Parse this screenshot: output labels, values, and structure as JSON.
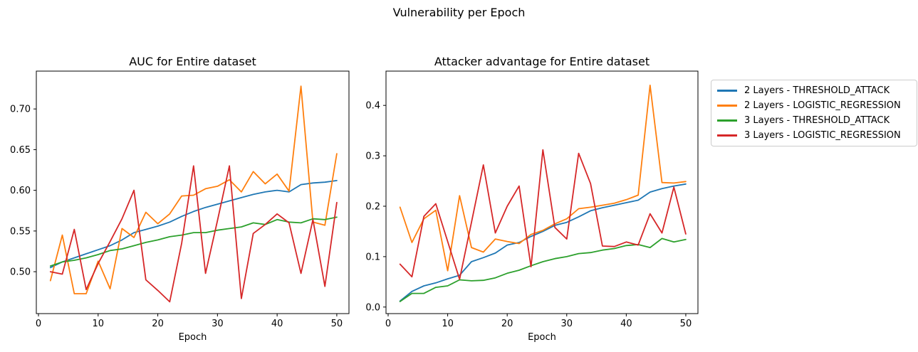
{
  "figure": {
    "title": "Vulnerability per Epoch",
    "background": "#ffffff"
  },
  "legend": {
    "position": "top-right-outside",
    "border_color": "#cccccc",
    "items": [
      {
        "label": "2 Layers - THRESHOLD_ATTACK",
        "color": "#1f77b4"
      },
      {
        "label": "2 Layers - LOGISTIC_REGRESSION",
        "color": "#ff7f0e"
      },
      {
        "label": "3 Layers - THRESHOLD_ATTACK",
        "color": "#2ca02c"
      },
      {
        "label": "3 Layers - LOGISTIC_REGRESSION",
        "color": "#d62728"
      }
    ]
  },
  "chart_data": [
    {
      "type": "line",
      "title": "AUC for Entire dataset",
      "xlabel": "Epoch",
      "ylabel": "",
      "grid": false,
      "x": [
        2,
        4,
        6,
        8,
        10,
        12,
        14,
        16,
        18,
        20,
        22,
        24,
        26,
        28,
        30,
        32,
        34,
        36,
        38,
        40,
        42,
        44,
        46,
        48,
        50
      ],
      "xticks": [
        0,
        10,
        20,
        30,
        40,
        50
      ],
      "xtick_labels": [
        "0",
        "10",
        "20",
        "30",
        "40",
        "50"
      ],
      "yticks": [
        0.5,
        0.55,
        0.6,
        0.65,
        0.7
      ],
      "ytick_labels": [
        "0.50",
        "0.55",
        "0.60",
        "0.65",
        "0.70"
      ],
      "xlim": [
        -0.36,
        52.04
      ],
      "ylim": [
        0.4485,
        0.7465
      ],
      "series": [
        {
          "name": "2 Layers - THRESHOLD_ATTACK",
          "color": "#1f77b4",
          "values": [
            0.505,
            0.512,
            0.517,
            0.522,
            0.527,
            0.532,
            0.539,
            0.548,
            0.552,
            0.556,
            0.561,
            0.568,
            0.574,
            0.579,
            0.583,
            0.587,
            0.591,
            0.595,
            0.598,
            0.6,
            0.598,
            0.607,
            0.609,
            0.61,
            0.612
          ]
        },
        {
          "name": "2 Layers - LOGISTIC_REGRESSION",
          "color": "#ff7f0e",
          "values": [
            0.489,
            0.545,
            0.473,
            0.473,
            0.513,
            0.479,
            0.553,
            0.542,
            0.573,
            0.559,
            0.571,
            0.593,
            0.594,
            0.602,
            0.605,
            0.613,
            0.598,
            0.623,
            0.608,
            0.62,
            0.599,
            0.728,
            0.561,
            0.557,
            0.645
          ]
        },
        {
          "name": "3 Layers - THRESHOLD_ATTACK",
          "color": "#2ca02c",
          "values": [
            0.507,
            0.512,
            0.514,
            0.517,
            0.521,
            0.526,
            0.528,
            0.532,
            0.536,
            0.539,
            0.543,
            0.545,
            0.548,
            0.548,
            0.551,
            0.553,
            0.555,
            0.56,
            0.558,
            0.564,
            0.561,
            0.56,
            0.565,
            0.564,
            0.567
          ]
        },
        {
          "name": "3 Layers - LOGISTIC_REGRESSION",
          "color": "#d62728",
          "values": [
            0.5,
            0.497,
            0.552,
            0.478,
            0.51,
            0.537,
            0.565,
            0.6,
            0.49,
            0.477,
            0.463,
            0.535,
            0.63,
            0.498,
            0.563,
            0.63,
            0.467,
            0.547,
            0.558,
            0.571,
            0.56,
            0.498,
            0.564,
            0.482,
            0.585
          ]
        }
      ]
    },
    {
      "type": "line",
      "title": "Attacker advantage for Entire dataset",
      "xlabel": "Epoch",
      "ylabel": "",
      "grid": false,
      "x": [
        2,
        4,
        6,
        8,
        10,
        12,
        14,
        16,
        18,
        20,
        22,
        24,
        26,
        28,
        30,
        32,
        34,
        36,
        38,
        40,
        42,
        44,
        46,
        48,
        50
      ],
      "xticks": [
        0,
        10,
        20,
        30,
        40,
        50
      ],
      "xtick_labels": [
        "0",
        "10",
        "20",
        "30",
        "40",
        "50"
      ],
      "yticks": [
        0.0,
        0.1,
        0.2,
        0.3,
        0.4
      ],
      "ytick_labels": [
        "0.0",
        "0.1",
        "0.2",
        "0.3",
        "0.4"
      ],
      "xlim": [
        -0.36,
        52.04
      ],
      "ylim": [
        -0.013,
        0.468
      ],
      "series": [
        {
          "name": "2 Layers - THRESHOLD_ATTACK",
          "color": "#1f77b4",
          "values": [
            0.012,
            0.031,
            0.042,
            0.048,
            0.056,
            0.063,
            0.09,
            0.098,
            0.107,
            0.123,
            0.128,
            0.14,
            0.15,
            0.162,
            0.168,
            0.179,
            0.191,
            0.197,
            0.202,
            0.207,
            0.212,
            0.228,
            0.235,
            0.24,
            0.244
          ]
        },
        {
          "name": "2 Layers - LOGISTIC_REGRESSION",
          "color": "#ff7f0e",
          "values": [
            0.198,
            0.128,
            0.175,
            0.192,
            0.072,
            0.221,
            0.118,
            0.109,
            0.135,
            0.13,
            0.126,
            0.144,
            0.152,
            0.165,
            0.175,
            0.195,
            0.198,
            0.202,
            0.206,
            0.213,
            0.222,
            0.44,
            0.247,
            0.246,
            0.249
          ]
        },
        {
          "name": "3 Layers - THRESHOLD_ATTACK",
          "color": "#2ca02c",
          "values": [
            0.011,
            0.027,
            0.027,
            0.039,
            0.042,
            0.054,
            0.052,
            0.053,
            0.058,
            0.067,
            0.073,
            0.082,
            0.09,
            0.096,
            0.1,
            0.106,
            0.108,
            0.113,
            0.116,
            0.122,
            0.124,
            0.118,
            0.136,
            0.129,
            0.134
          ]
        },
        {
          "name": "3 Layers - LOGISTIC_REGRESSION",
          "color": "#d62728",
          "values": [
            0.085,
            0.06,
            0.18,
            0.205,
            0.13,
            0.055,
            0.168,
            0.282,
            0.147,
            0.2,
            0.24,
            0.08,
            0.312,
            0.158,
            0.135,
            0.305,
            0.245,
            0.121,
            0.12,
            0.129,
            0.123,
            0.185,
            0.147,
            0.238,
            0.145
          ]
        }
      ]
    }
  ]
}
